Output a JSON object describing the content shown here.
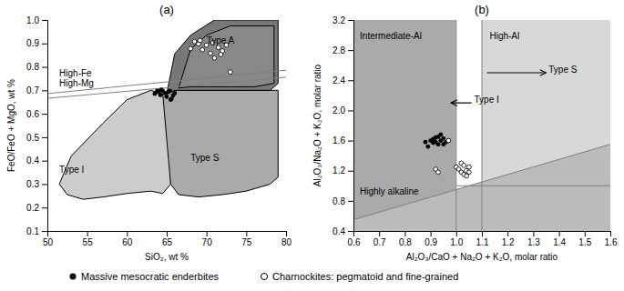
{
  "chart_data": [
    {
      "type": "scatter",
      "title": "(a)",
      "x_label": "SiO₂, wt %",
      "y_label": "FeO/FeO + MgO, wt %",
      "xlim": [
        50,
        80
      ],
      "ylim": [
        0.1,
        1.0
      ],
      "xticks": [
        50,
        55,
        60,
        65,
        70,
        75,
        80
      ],
      "yticks": [
        0.1,
        0.2,
        0.3,
        0.4,
        0.5,
        0.6,
        0.7,
        0.8,
        0.9,
        {
          "value": 1.0,
          "label": "1.0"
        }
      ],
      "grid": false,
      "regions": [
        {
          "color": "#cccccc",
          "line_style": "solid",
          "x": [
            51.5,
            52.5,
            54.5,
            57,
            60,
            63,
            64.5,
            65.5,
            65.5,
            64.5,
            63,
            60,
            57,
            53,
            51.5
          ],
          "y": [
            0.3,
            0.255,
            0.235,
            0.245,
            0.26,
            0.27,
            0.26,
            0.3,
            0.67,
            0.685,
            0.7,
            0.66,
            0.56,
            0.42,
            0.3
          ]
        },
        {
          "color": "#aaaaaa",
          "line_style": "solid",
          "x": [
            64.5,
            65.5,
            66.5,
            69,
            72,
            75,
            78,
            79,
            79,
            75,
            70,
            66,
            65,
            64.5
          ],
          "y": [
            0.685,
            0.3,
            0.255,
            0.245,
            0.255,
            0.27,
            0.3,
            0.33,
            0.7,
            0.7,
            0.7,
            0.7,
            0.685,
            0.685
          ]
        },
        {
          "color": "#787878",
          "line_style": "solid",
          "x": [
            65,
            66,
            69,
            72,
            75,
            78,
            79,
            79,
            75,
            71,
            68,
            66,
            65
          ],
          "y": [
            0.685,
            0.7,
            0.7,
            0.7,
            0.7,
            0.7,
            0.73,
            1.0,
            1.0,
            1.0,
            0.935,
            0.855,
            0.685
          ]
        },
        {
          "color": "#888888",
          "line_style": "solid",
          "x": [
            66.5,
            68,
            70,
            73,
            76,
            78.5,
            78.5,
            76,
            73,
            70,
            68,
            66.5
          ],
          "y": [
            0.71,
            0.715,
            0.715,
            0.715,
            0.715,
            0.73,
            0.975,
            0.975,
            0.975,
            0.935,
            0.875,
            0.71
          ]
        }
      ],
      "lines": [
        {
          "color": "gray",
          "x": [
            50,
            80
          ],
          "y": [
            0.686,
            0.786
          ]
        },
        {
          "color": "gray",
          "x": [
            50,
            80
          ],
          "y": [
            0.666,
            0.756
          ]
        }
      ],
      "annotations": [
        {
          "text": "High-Fe",
          "x": 51.5,
          "y": 0.76
        },
        {
          "text": "High-Mg",
          "x": 51.5,
          "y": 0.715
        },
        {
          "text": "Type I",
          "x": 51.5,
          "y": 0.35
        },
        {
          "text": "Type S",
          "x": 68,
          "y": 0.4
        },
        {
          "text": "Type A",
          "x": 70,
          "y": 0.9
        }
      ],
      "series": [
        {
          "name": "Massive mesocratic enderbites",
          "color": "black",
          "marker": "filled-circle",
          "x": [
            63.5,
            64.0,
            64.2,
            64.5,
            64.8,
            65.0,
            65.2,
            65.4,
            65.5,
            65.6,
            65.8,
            66.0,
            64.3,
            63.8
          ],
          "values": [
            0.685,
            0.693,
            0.68,
            0.698,
            0.688,
            0.673,
            0.693,
            0.698,
            0.66,
            0.663,
            0.678,
            0.688,
            0.703,
            0.698
          ]
        },
        {
          "name": "Charnockites: pegmatoid and fine-grained",
          "color": "black",
          "marker": "open-circle",
          "x": [
            68.0,
            69.0,
            69.5,
            70.0,
            70.5,
            71.0,
            71.5,
            72.0,
            72.5,
            73.0,
            68.5,
            69.2,
            70.8,
            71.8
          ],
          "values": [
            0.878,
            0.898,
            0.873,
            0.893,
            0.858,
            0.838,
            0.883,
            0.868,
            0.893,
            0.778,
            0.908,
            0.913,
            0.903,
            0.853
          ]
        }
      ]
    },
    {
      "type": "scatter",
      "title": "(b)",
      "x_label": "Al₂O₃/CaO + Na₂O + K₂O, molar ratio",
      "y_label": "Al₂O₃/Na₂O + K₂O, molar ratio",
      "xlim": [
        0.6,
        1.6
      ],
      "ylim": [
        0.4,
        3.2
      ],
      "xticks": [
        0.6,
        0.7,
        0.8,
        0.9,
        {
          "value": 1.0,
          "label": "1.0"
        },
        1.1,
        1.2,
        1.3,
        1.4,
        1.5,
        1.6
      ],
      "yticks": [
        0.4,
        0.8,
        1.2,
        1.6,
        {
          "value": 2.0,
          "label": "2.0"
        },
        2.4,
        2.8,
        3.2
      ],
      "grid": false,
      "regions": [
        {
          "color": "#aaaaaa",
          "line_style": "none",
          "x": [
            0.6,
            1.0,
            1.0,
            0.6
          ],
          "y": [
            3.2,
            3.2,
            0.4,
            0.4
          ]
        },
        {
          "color": "#d8d8d8",
          "line_style": "none",
          "x": [
            1.1,
            1.6,
            1.6,
            1.1
          ],
          "y": [
            3.2,
            3.2,
            0.4,
            0.4
          ]
        },
        {
          "color": "#ffffff",
          "line_style": "none",
          "x": [
            1.0,
            1.1,
            1.1,
            1.0
          ],
          "y": [
            3.2,
            3.2,
            0.4,
            0.4
          ]
        },
        {
          "color": "#bbbbbb",
          "line_style": "none",
          "x": [
            0.6,
            1.6,
            1.6,
            0.6
          ],
          "y": [
            0.55,
            1.55,
            0.4,
            0.4
          ]
        }
      ],
      "lines": [
        {
          "color": "gray",
          "x": [
            0.6,
            1.6
          ],
          "y": [
            0.55,
            1.55
          ]
        },
        {
          "color": "gray",
          "x": [
            1.0,
            1.6
          ],
          "y": [
            1.0,
            1.0
          ]
        },
        {
          "color": "gray",
          "x": [
            1.0,
            1.0
          ],
          "y": [
            0.4,
            3.2
          ]
        },
        {
          "color": "gray",
          "x": [
            1.1,
            1.1
          ],
          "y": [
            0.4,
            3.2
          ]
        }
      ],
      "arrows": [
        {
          "color": "black",
          "x": [
            1.12,
            1.35
          ],
          "y": [
            2.5,
            2.5
          ]
        },
        {
          "color": "black",
          "x": [
            1.06,
            0.98
          ],
          "y": [
            2.1,
            2.1
          ]
        }
      ],
      "annotations": [
        {
          "text": "Intermediate-Al",
          "x": 0.625,
          "y": 2.95
        },
        {
          "text": "High-Al",
          "x": 1.13,
          "y": 2.95
        },
        {
          "text": "Highly alkaline",
          "x": 0.625,
          "y": 0.88
        },
        {
          "text": "Type S",
          "x": 1.36,
          "y": 2.5
        },
        {
          "text": "Type I",
          "x": 1.07,
          "y": 2.1
        }
      ],
      "series": [
        {
          "color": "black",
          "marker": "filled-circle",
          "x": [
            0.88,
            0.9,
            0.91,
            0.92,
            0.93,
            0.94,
            0.95,
            0.96,
            0.93,
            0.94,
            0.89,
            0.91,
            0.92,
            0.95,
            0.97
          ],
          "values": [
            1.58,
            1.6,
            1.62,
            1.58,
            1.65,
            1.6,
            1.63,
            1.58,
            1.55,
            1.68,
            1.52,
            1.57,
            1.64,
            1.55,
            1.6
          ]
        },
        {
          "color": "black",
          "marker": "open-circle",
          "x": [
            0.97,
            1.0,
            1.01,
            1.02,
            1.02,
            1.03,
            1.03,
            1.04,
            1.04,
            1.05,
            1.05,
            0.92,
            0.93
          ],
          "values": [
            1.6,
            1.25,
            1.22,
            1.18,
            1.3,
            1.15,
            1.27,
            1.2,
            1.13,
            1.25,
            1.18,
            1.22,
            1.18
          ]
        }
      ]
    }
  ]
}
